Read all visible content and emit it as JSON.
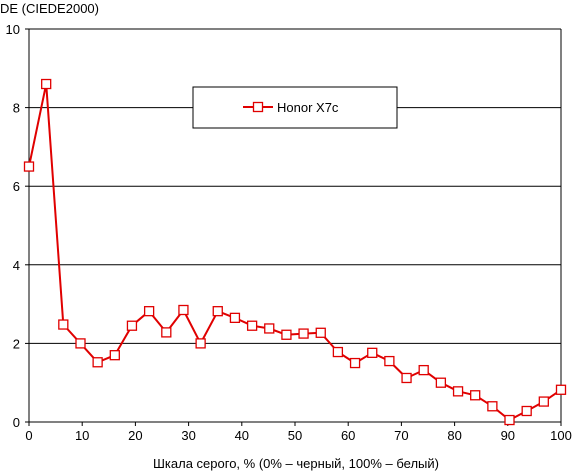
{
  "chart_data": {
    "type": "line",
    "ylabel": "DE (CIEDE2000)",
    "xlabel": "Шкала серого, % (0% – черный, 100% – белый)",
    "xlim": [
      0,
      100
    ],
    "ylim": [
      0,
      10
    ],
    "xticks": [
      0,
      10,
      20,
      30,
      40,
      50,
      60,
      70,
      80,
      90,
      100
    ],
    "yticks": [
      0,
      2,
      4,
      6,
      8,
      10
    ],
    "grid": "horizontal",
    "legend_placement": "top-center",
    "series": [
      {
        "name": "Honor X7c",
        "color": "#e00000",
        "marker": "square",
        "x": [
          0,
          3.23,
          6.45,
          9.68,
          12.9,
          16.13,
          19.35,
          22.58,
          25.81,
          29.03,
          32.26,
          35.48,
          38.71,
          41.94,
          45.16,
          48.39,
          51.61,
          54.84,
          58.06,
          61.29,
          64.52,
          67.74,
          70.97,
          74.19,
          77.42,
          80.65,
          83.87,
          87.1,
          90.32,
          93.55,
          96.77,
          100
        ],
        "values": [
          6.5,
          8.6,
          2.48,
          2.0,
          1.52,
          1.7,
          2.45,
          2.82,
          2.28,
          2.85,
          2.0,
          2.82,
          2.65,
          2.45,
          2.38,
          2.22,
          2.25,
          2.27,
          1.78,
          1.5,
          1.76,
          1.55,
          1.12,
          1.32,
          1.0,
          0.78,
          0.68,
          0.4,
          0.05,
          0.28,
          0.52,
          0.82
        ]
      }
    ]
  }
}
